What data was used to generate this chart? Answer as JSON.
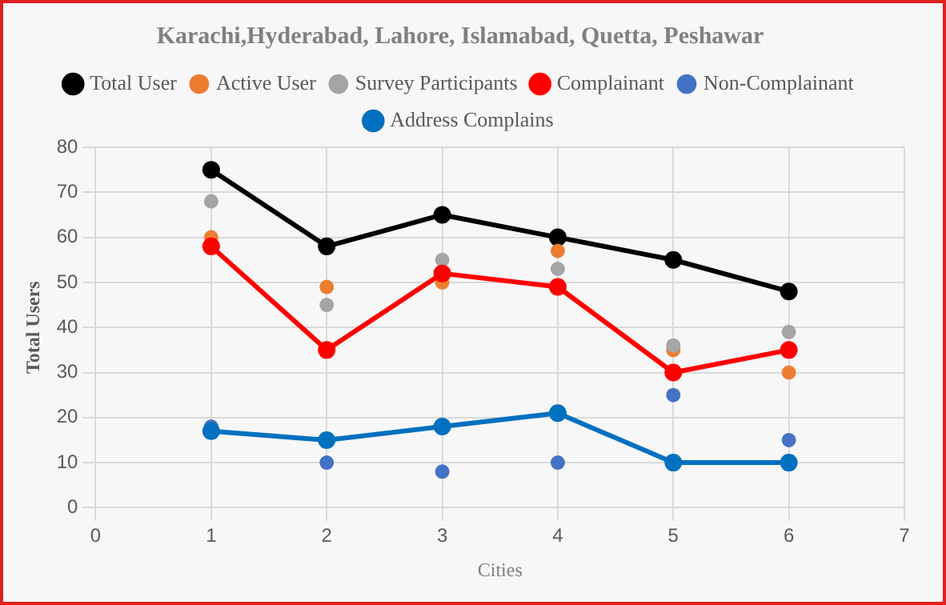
{
  "chart_data": {
    "type": "line",
    "title": "Karachi,Hyderabad, Lahore, Islamabad, Quetta, Peshawar",
    "xlabel": "Cities",
    "ylabel": "Total Users",
    "x": [
      1,
      2,
      3,
      4,
      5,
      6
    ],
    "xlim": [
      0,
      7
    ],
    "xticks": [
      0,
      1,
      2,
      3,
      4,
      5,
      6,
      7
    ],
    "ylim": [
      0,
      80
    ],
    "yticks": [
      0,
      10,
      20,
      30,
      40,
      50,
      60,
      70,
      80
    ],
    "grid": true,
    "legend": "top",
    "marker": "circle",
    "series": [
      {
        "name": "Total User",
        "type": "line",
        "color": "#000000",
        "values": [
          75,
          58,
          65,
          60,
          55,
          48
        ]
      },
      {
        "name": "Active User",
        "type": "scatter",
        "color": "#ed7d31",
        "values": [
          60,
          49,
          50,
          57,
          35,
          30
        ]
      },
      {
        "name": "Survey Participants",
        "type": "scatter",
        "color": "#a5a5a5",
        "values": [
          68,
          45,
          55,
          53,
          36,
          39
        ]
      },
      {
        "name": "Complainant",
        "type": "line",
        "color": "#ff0000",
        "values": [
          58,
          35,
          52,
          49,
          30,
          35
        ]
      },
      {
        "name": "Non-Complainant",
        "type": "scatter",
        "color": "#4472c4",
        "values": [
          18,
          10,
          8,
          10,
          25,
          15
        ]
      },
      {
        "name": "Address Complains",
        "type": "line",
        "color": "#0070c0",
        "values": [
          17,
          15,
          18,
          21,
          10,
          10
        ]
      }
    ]
  }
}
